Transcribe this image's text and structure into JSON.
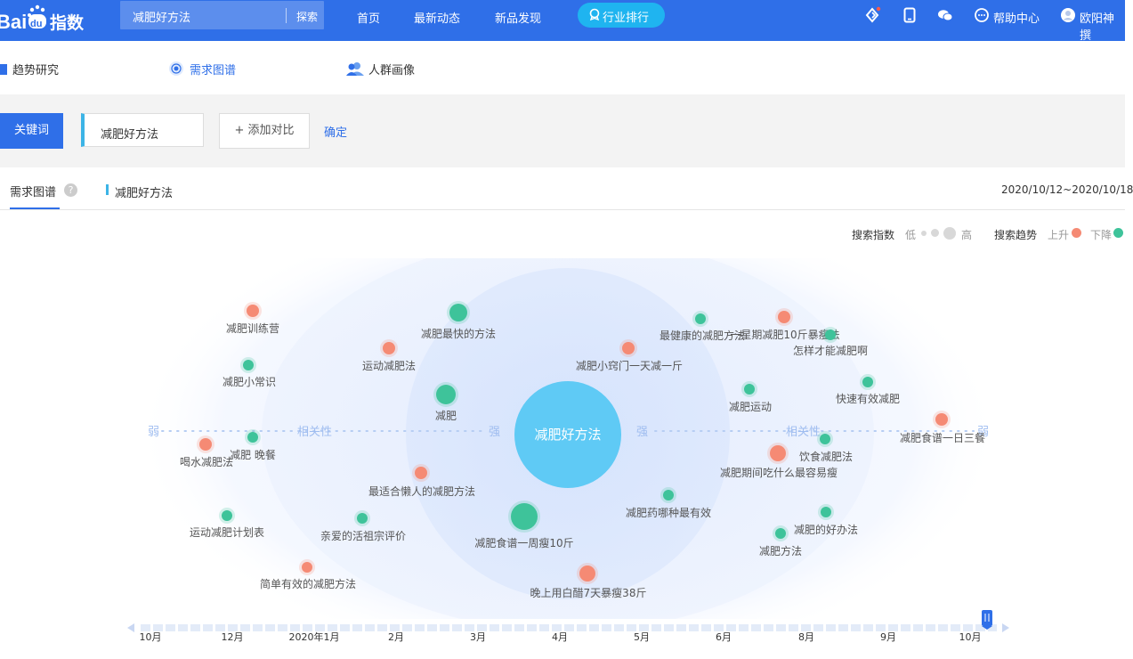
{
  "topnav": {
    "search_query": "减肥好方法",
    "search_button": "探索",
    "links": [
      "首页",
      "最新动态",
      "新品发现"
    ],
    "rank_button": "行业排行",
    "help": "帮助中心",
    "user": "欧阳神撰",
    "brand_color": "#2f6fe8",
    "rank_color": "#1fb4f0"
  },
  "subnav": {
    "items": [
      "趋势研究",
      "需求图谱",
      "人群画像"
    ],
    "active": "需求图谱"
  },
  "keyword_bar": {
    "label": "关键词",
    "keyword": "减肥好方法",
    "add_compare": "+ 添加对比",
    "confirm": "确定"
  },
  "tabs": {
    "active_tab": "需求图谱",
    "help": "?",
    "keyword": "减肥好方法",
    "date_range": "2020/10/12~2020/10/18"
  },
  "legend": {
    "index_label": "搜索指数",
    "low": "低",
    "high": "高",
    "trend_label": "搜索趋势",
    "up": "上升",
    "down": "下降",
    "up_color": "#f58a74",
    "down_color": "#3ec39a"
  },
  "graph": {
    "center_label": "减肥好方法",
    "axis_left": {
      "weak": "弱",
      "relevance": "相关性",
      "strong": "强"
    },
    "axis_right": {
      "strong": "强",
      "relevance": "相关性",
      "weak": "弱"
    },
    "nodes": [
      {
        "label": "减肥训练营",
        "trend": "up"
      },
      {
        "label": "减肥最快的方法",
        "trend": "down"
      },
      {
        "label": "最健康的减肥方法",
        "trend": "down"
      },
      {
        "label": "一星期减肥10斤暴瘦法",
        "trend": "up"
      },
      {
        "label": "怎样才能减肥啊",
        "trend": "down"
      },
      {
        "label": "运动减肥法",
        "trend": "up"
      },
      {
        "label": "减肥小窍门一天减一斤",
        "trend": "up"
      },
      {
        "label": "减肥小常识",
        "trend": "down"
      },
      {
        "label": "减肥",
        "trend": "down"
      },
      {
        "label": "减肥运动",
        "trend": "down"
      },
      {
        "label": "快速有效减肥",
        "trend": "down"
      },
      {
        "label": "减肥食谱一日三餐",
        "trend": "up"
      },
      {
        "label": "喝水减肥法",
        "trend": "up"
      },
      {
        "label": "减肥 晚餐",
        "trend": "down"
      },
      {
        "label": "饮食减肥法",
        "trend": "down"
      },
      {
        "label": "减肥期间吃什么最容易瘦",
        "trend": "up"
      },
      {
        "label": "最适合懒人的减肥方法",
        "trend": "up"
      },
      {
        "label": "减肥药哪种最有效",
        "trend": "down"
      },
      {
        "label": "运动减肥计划表",
        "trend": "down"
      },
      {
        "label": "亲爱的活祖宗评价",
        "trend": "down"
      },
      {
        "label": "减肥食谱一周瘦10斤",
        "trend": "down"
      },
      {
        "label": "减肥的好办法",
        "trend": "down"
      },
      {
        "label": "减肥方法",
        "trend": "down"
      },
      {
        "label": "简单有效的减肥方法",
        "trend": "up"
      },
      {
        "label": "晚上用白醋7天暴瘦38斤",
        "trend": "up"
      }
    ]
  },
  "timeline": {
    "ticks": [
      "10月",
      "12月",
      "2020年1月",
      "2月",
      "3月",
      "4月",
      "5月",
      "6月",
      "8月",
      "9月",
      "10月"
    ]
  }
}
